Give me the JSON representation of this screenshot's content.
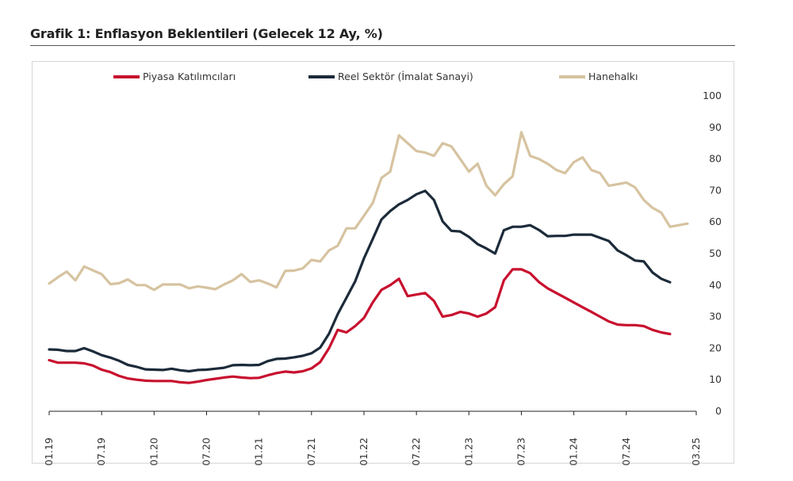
{
  "page_title": "Grafik 1: Enflasyon Beklentileri (Gelecek 12 Ay, %)",
  "colors": {
    "piyasa": "#c8102e",
    "reel": "#1c2b3a",
    "hane": "#d6c3a0"
  },
  "chart_data": {
    "type": "line",
    "title": "Grafik 1: Enflasyon Beklentileri (Gelecek 12 Ay, %)",
    "xlabel": "",
    "ylabel": "",
    "ylim": [
      0,
      100
    ],
    "y_ticks": [
      "0",
      "10",
      "20",
      "30",
      "40",
      "50",
      "60",
      "70",
      "80",
      "90",
      "100"
    ],
    "x_ticks": [
      "01.19",
      "07.19",
      "01.20",
      "07.20",
      "01.21",
      "07.21",
      "01.22",
      "07.22",
      "01.23",
      "07.23",
      "01.24",
      "07.24",
      "03.25"
    ],
    "x_tick_months": [
      0,
      6,
      12,
      18,
      24,
      30,
      36,
      42,
      48,
      54,
      60,
      66,
      74
    ],
    "legend_position": "top",
    "grid": false,
    "x_months_from": "2019-01",
    "series": [
      {
        "name": "Piyasa Katılımcıları",
        "color": "#c8102e",
        "values": [
          16.2,
          15.4,
          15.4,
          15.4,
          15.2,
          14.5,
          13.2,
          12.4,
          11.2,
          10.4,
          10.0,
          9.7,
          9.6,
          9.6,
          9.6,
          9.2,
          9.0,
          9.4,
          9.9,
          10.3,
          10.7,
          11.0,
          10.7,
          10.5,
          10.6,
          11.4,
          12.1,
          12.6,
          12.3,
          12.7,
          13.6,
          15.6,
          20.0,
          25.8,
          25.0,
          27.0,
          29.6,
          34.5,
          38.5,
          40.0,
          42.0,
          36.5,
          37.0,
          37.5,
          35.0,
          30.0,
          30.5,
          31.5,
          31.0,
          30.0,
          31.0,
          33.0,
          41.5,
          45.0,
          45.0,
          43.8,
          41.0,
          39.0,
          37.5,
          36.0,
          34.5,
          33.0,
          31.5,
          30.0,
          28.5,
          27.5,
          27.3,
          27.3,
          27.0,
          25.8,
          25.0,
          24.5
        ]
      },
      {
        "name": "Reel Sektör (İmalat Sanayi)",
        "color": "#1c2b3a",
        "values": [
          19.6,
          19.5,
          19.1,
          19.1,
          20.0,
          19.0,
          17.8,
          17.0,
          16.0,
          14.7,
          14.1,
          13.3,
          13.2,
          13.1,
          13.5,
          13.0,
          12.7,
          13.1,
          13.2,
          13.5,
          13.8,
          14.6,
          14.7,
          14.6,
          14.7,
          15.9,
          16.6,
          16.7,
          17.1,
          17.6,
          18.4,
          20.2,
          24.6,
          30.8,
          36.0,
          41.2,
          48.5,
          54.6,
          60.8,
          63.5,
          65.6,
          67.0,
          68.8,
          69.9,
          67.0,
          60.2,
          57.2,
          57.0,
          55.3,
          53.0,
          51.6,
          50.0,
          57.4,
          58.5,
          58.5,
          59.0,
          57.5,
          55.5,
          55.6,
          55.6,
          56.0,
          56.0,
          56.0,
          55.0,
          54.0,
          51.0,
          49.5,
          47.8,
          47.5,
          44.0,
          42.0,
          40.9
        ]
      },
      {
        "name": "Hanehalkı",
        "color": "#d6c3a0",
        "values": [
          40.5,
          42.5,
          44.3,
          41.5,
          45.9,
          44.7,
          43.5,
          40.3,
          40.6,
          41.8,
          40.0,
          40.0,
          38.5,
          40.2,
          40.2,
          40.2,
          39.0,
          39.6,
          39.2,
          38.7,
          40.2,
          41.5,
          43.5,
          41.0,
          41.5,
          40.5,
          39.3,
          44.5,
          44.6,
          45.3,
          48.0,
          47.5,
          51.0,
          52.5,
          58.0,
          58.0,
          62.0,
          66.0,
          74.0,
          76.0,
          87.5,
          85.0,
          82.5,
          82.0,
          81.0,
          85.0,
          84.0,
          80.0,
          76.0,
          78.5,
          71.5,
          68.5,
          72.0,
          74.5,
          88.5,
          81.0,
          80.0,
          78.5,
          76.5,
          75.5,
          79.0,
          80.5,
          76.5,
          75.5,
          71.5,
          72.0,
          72.5,
          71.0,
          67.0,
          64.5,
          63.0,
          58.5,
          59.0,
          59.5
        ]
      }
    ]
  }
}
